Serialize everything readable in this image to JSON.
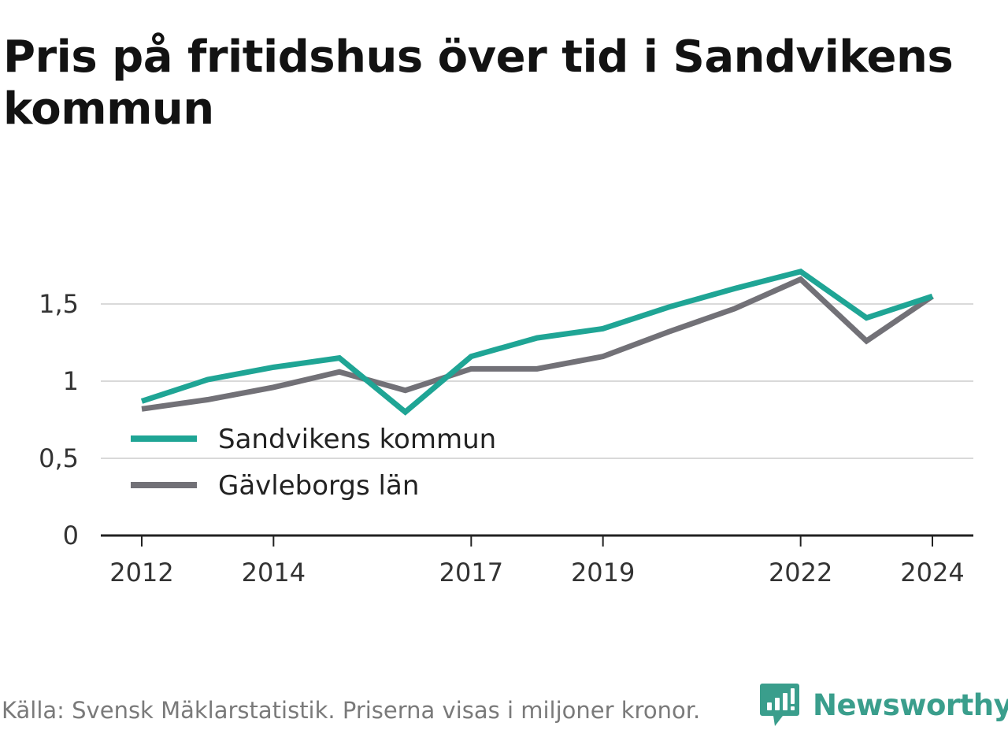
{
  "title": "Pris på fritidshus över tid i Sandvikens kommun",
  "footer": "Källa: Svensk Mäklarstatistik. Priserna visas i miljoner kronor.",
  "brand": {
    "name": "Newsworthy",
    "icon": "newsworthy-logo-icon",
    "color": "#3a9e8c"
  },
  "chart_data": {
    "type": "line",
    "x": [
      2012,
      2013,
      2014,
      2015,
      2016,
      2017,
      2018,
      2019,
      2020,
      2021,
      2022,
      2023,
      2024
    ],
    "x_tick_labels": [
      "2012",
      "2014",
      "2017",
      "2019",
      "2022",
      "2024"
    ],
    "y_ticks": [
      0,
      0.5,
      1,
      1.5
    ],
    "y_tick_labels": [
      "0",
      "0,5",
      "1",
      "1,5"
    ],
    "ylim": [
      0,
      1.75
    ],
    "grid": true,
    "legend_position": "lower-left",
    "series": [
      {
        "name": "Sandvikens kommun",
        "color": "#1fa595",
        "values": [
          0.87,
          1.01,
          1.09,
          1.15,
          0.8,
          1.16,
          1.28,
          1.34,
          1.48,
          1.6,
          1.71,
          1.41,
          1.55
        ]
      },
      {
        "name": "Gävleborgs län",
        "color": "#727177",
        "values": [
          0.82,
          0.88,
          0.96,
          1.06,
          0.94,
          1.08,
          1.08,
          1.16,
          1.32,
          1.47,
          1.66,
          1.26,
          1.55
        ]
      }
    ]
  }
}
